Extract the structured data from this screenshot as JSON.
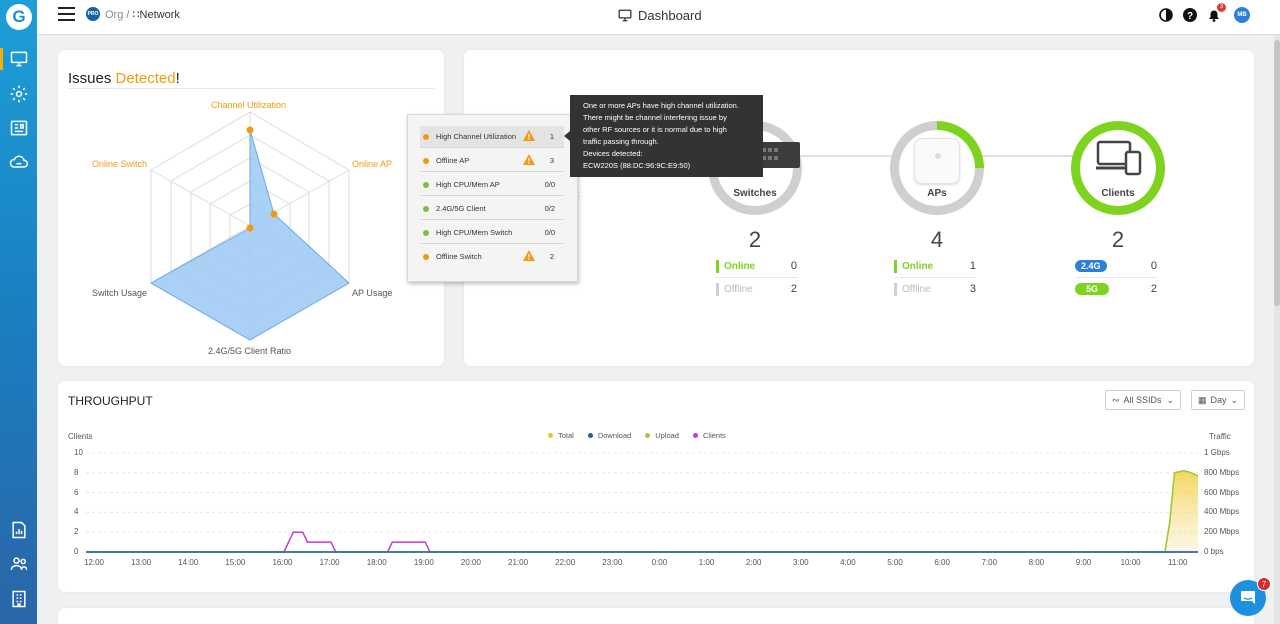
{
  "header": {
    "badge": "PRO",
    "org": "Org /",
    "network": "Network",
    "title": "Dashboard",
    "notifications": "3",
    "avatar": "MB"
  },
  "sidebar": {
    "logo": "G",
    "items": [
      "monitor-icon",
      "settings-icon",
      "reports-icon",
      "cloud-icon",
      "analytics-icon",
      "users-icon",
      "building-icon"
    ]
  },
  "issues": {
    "title_plain": "Issues",
    "title_highlight": "Detected",
    "title_end": "!",
    "radar": {
      "axes": [
        "Channel Utilization",
        "Online AP",
        "AP Usage",
        "2.4G/5G Client Ratio",
        "Switch Usage",
        "Online Switch"
      ],
      "highlighted_axes": [
        "Channel Utilization",
        "Online AP",
        "Online Switch"
      ],
      "fill_color": "#9cc8f5",
      "point_color": "#f29a0d"
    },
    "popup": [
      {
        "label": "High Channel Utilization",
        "status": "warning",
        "value": "1"
      },
      {
        "label": "Offline AP",
        "status": "warning",
        "value": "3"
      },
      {
        "label": "High CPU/Mem AP",
        "status": "ok",
        "value": "0/0"
      },
      {
        "label": "2.4G/5G Client",
        "status": "ok",
        "value": "0/2"
      },
      {
        "label": "High CPU/Mem Switch",
        "status": "ok",
        "value": "0/0"
      },
      {
        "label": "Offline Switch",
        "status": "warning",
        "value": "2"
      }
    ],
    "tooltip": {
      "line1": "One or more APs have high channel utilization.",
      "line2": "There might be channel interfering issue by",
      "line3": "other RF sources or it is normal due to high",
      "line4": "traffic passing through.",
      "line5": "Devices detected:",
      "line6": "ECW220S (88:DC:96:9C:E9:50)"
    }
  },
  "devices": {
    "internet_partial": "net",
    "switches": {
      "label": "Switches",
      "count": "2",
      "online_label": "Online",
      "online": "0",
      "offline_label": "Offline",
      "offline": "2"
    },
    "aps": {
      "label": "APs",
      "count": "4",
      "online_label": "Online",
      "online": "1",
      "offline_label": "Offline",
      "offline": "3"
    },
    "clients": {
      "label": "Clients",
      "count": "2",
      "band1_label": "2.4G",
      "band1": "0",
      "band2_label": "5G",
      "band2": "2"
    },
    "colors": {
      "online": "#7ed321",
      "offline": "#cfcfcf",
      "band24": "#2b7fd8",
      "band5": "#7ed321"
    }
  },
  "throughput": {
    "title": "THROUGHPUT",
    "ssid_dropdown": "All SSIDs",
    "period_dropdown": "Day",
    "left_axis_title": "Clients",
    "right_axis_title": "Traffic",
    "legend": [
      {
        "name": "Total",
        "color": "#f0c419"
      },
      {
        "name": "Download",
        "color": "#1763a6"
      },
      {
        "name": "Upload",
        "color": "#9ccc3c"
      },
      {
        "name": "Clients",
        "color": "#c837d6"
      }
    ],
    "chart_data": {
      "type": "line",
      "xlabel": "",
      "ylabel": "Clients",
      "y2label": "Traffic",
      "x": [
        "12:00",
        "13:00",
        "14:00",
        "15:00",
        "16:00",
        "17:00",
        "18:00",
        "19:00",
        "20:00",
        "21:00",
        "22:00",
        "23:00",
        "0:00",
        "1:00",
        "2:00",
        "3:00",
        "4:00",
        "5:00",
        "6:00",
        "7:00",
        "8:00",
        "9:00",
        "10:00",
        "11:00"
      ],
      "ylim": [
        0,
        10
      ],
      "yticks": [
        "10",
        "8",
        "6",
        "4",
        "2",
        "0"
      ],
      "y2ticks": [
        "1 Gbps",
        "800 Mbps",
        "600 Mbps",
        "400 Mbps",
        "200 Mbps",
        "0 bps"
      ],
      "series": [
        {
          "name": "Clients",
          "axis": "left",
          "points": [
            [
              0,
              0
            ],
            [
              4.2,
              0
            ],
            [
              4.4,
              2
            ],
            [
              4.6,
              2
            ],
            [
              4.7,
              1
            ],
            [
              5.2,
              1
            ],
            [
              5.3,
              0
            ],
            [
              6.4,
              0
            ],
            [
              6.5,
              1
            ],
            [
              7.2,
              1
            ],
            [
              7.3,
              0
            ],
            [
              23.6,
              0
            ]
          ]
        },
        {
          "name": "Total",
          "axis": "right",
          "points": [
            [
              0,
              0
            ],
            [
              22.9,
              0
            ],
            [
              23.0,
              300
            ],
            [
              23.1,
              800
            ],
            [
              23.3,
              820
            ],
            [
              23.4,
              810
            ],
            [
              23.6,
              770
            ]
          ]
        },
        {
          "name": "Upload",
          "axis": "right",
          "points": [
            [
              0,
              0
            ],
            [
              22.9,
              0
            ],
            [
              23.0,
              300
            ],
            [
              23.1,
              800
            ],
            [
              23.3,
              820
            ],
            [
              23.4,
              810
            ],
            [
              23.6,
              770
            ]
          ]
        },
        {
          "name": "Download",
          "axis": "right",
          "points": [
            [
              0,
              0
            ],
            [
              23.6,
              0
            ]
          ]
        }
      ]
    }
  },
  "chat": {
    "badge": "7"
  }
}
